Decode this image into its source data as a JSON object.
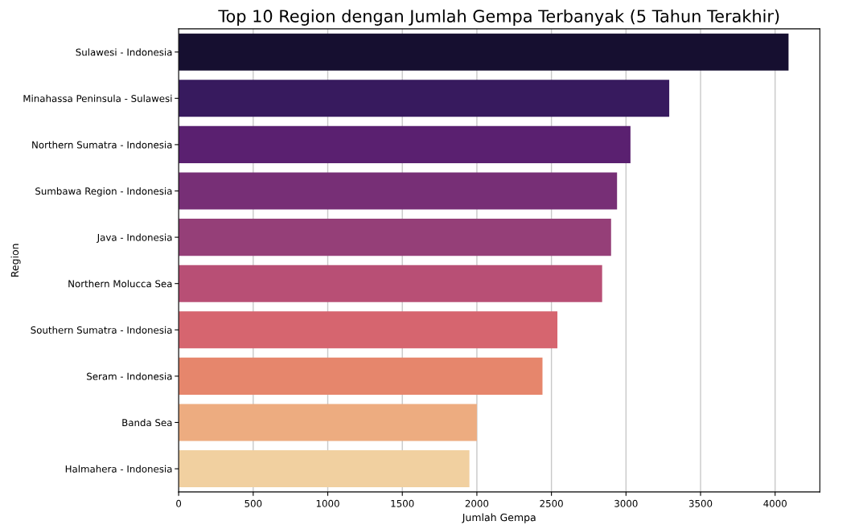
{
  "chart_data": {
    "type": "bar",
    "orientation": "horizontal",
    "title": "Top 10 Region dengan Jumlah Gempa Terbanyak (5 Tahun Terakhir)",
    "xlabel": "Jumlah Gempa",
    "ylabel": "Region",
    "categories": [
      "Sulawesi - Indonesia",
      "Minahassa Peninsula - Sulawesi",
      "Northern Sumatra - Indonesia",
      "Sumbawa Region - Indonesia",
      "Java - Indonesia",
      "Northern Molucca Sea",
      "Southern Sumatra - Indonesia",
      "Seram - Indonesia",
      "Banda Sea",
      "Halmahera - Indonesia"
    ],
    "values": [
      4090,
      3290,
      3030,
      2940,
      2900,
      2840,
      2540,
      2440,
      2000,
      1950
    ],
    "colors": [
      "#160f30",
      "#371a5e",
      "#5a2070",
      "#772f76",
      "#953f78",
      "#b84f75",
      "#d6656f",
      "#e6866c",
      "#edac80",
      "#f1d0a0"
    ],
    "xlim": [
      0,
      4300
    ],
    "xticks": [
      0,
      500,
      1000,
      1500,
      2000,
      2500,
      3000,
      3500,
      4000
    ],
    "grid": "x"
  }
}
